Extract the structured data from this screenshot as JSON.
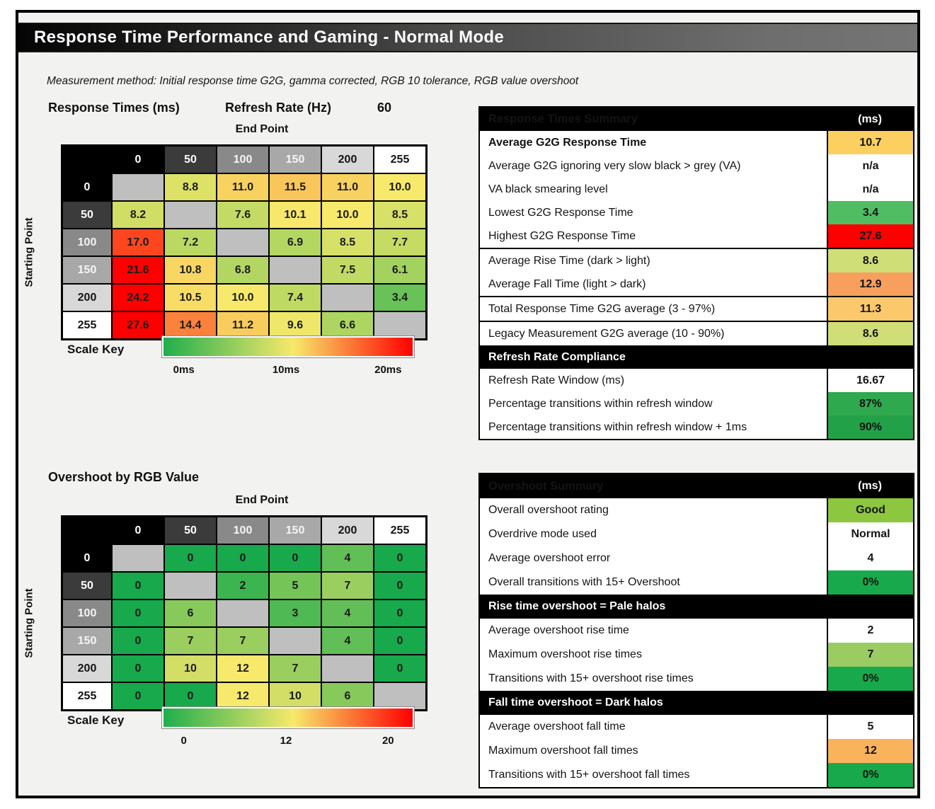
{
  "page": {
    "title": "Response Time Performance and Gaming - Normal Mode",
    "method_note": "Measurement method: Initial response time G2G, gamma corrected, RGB 10 tolerance, RGB value overshoot"
  },
  "ui": {
    "level_shades": [
      {
        "bg": "#000000",
        "fg": "#ffffff"
      },
      {
        "bg": "#3b3b3b",
        "fg": "#ffffff"
      },
      {
        "bg": "#898989",
        "fg": "#f5f5f5"
      },
      {
        "bg": "#a8a8a8",
        "fg": "#f5f5f5"
      },
      {
        "bg": "#d8d8d8",
        "fg": "#141414"
      },
      {
        "bg": "#ffffff",
        "fg": "#141414"
      }
    ],
    "diagonal_color": "#bfbfbf"
  },
  "chart_data": [
    {
      "type": "heatmap",
      "title": "Response Times (ms)",
      "refresh_rate": {
        "label": "Refresh Rate (Hz)",
        "value": "60"
      },
      "x_label": "End Point",
      "y_label": "Starting Point",
      "categories": [
        "0",
        "50",
        "100",
        "150",
        "200",
        "255"
      ],
      "rows": [
        [
          null,
          "8.8",
          "11.0",
          "11.5",
          "11.0",
          "10.0"
        ],
        [
          "8.2",
          null,
          "7.6",
          "10.1",
          "10.0",
          "8.5"
        ],
        [
          "17.0",
          "7.2",
          null,
          "6.9",
          "8.5",
          "7.7"
        ],
        [
          "21.6",
          "10.8",
          "6.8",
          null,
          "7.5",
          "6.1"
        ],
        [
          "24.2",
          "10.5",
          "10.0",
          "7.4",
          null,
          "3.4"
        ],
        [
          "27.6",
          "14.4",
          "11.2",
          "9.6",
          "6.6",
          null
        ]
      ],
      "scale": {
        "label": "Scale Key",
        "min": 0,
        "mid": 10,
        "max": 20,
        "colors": [
          "#1fae4d",
          "#f7e96b",
          "#ff0000"
        ],
        "ticks": [
          "0ms",
          "10ms",
          "20ms"
        ]
      }
    },
    {
      "type": "heatmap",
      "title": "Overshoot by RGB Value",
      "x_label": "End Point",
      "y_label": "Starting Point",
      "categories": [
        "0",
        "50",
        "100",
        "150",
        "200",
        "255"
      ],
      "rows": [
        [
          null,
          "0",
          "0",
          "0",
          "4",
          "0"
        ],
        [
          "0",
          null,
          "2",
          "5",
          "7",
          "0"
        ],
        [
          "0",
          "6",
          null,
          "3",
          "4",
          "0"
        ],
        [
          "0",
          "7",
          "7",
          null,
          "4",
          "0"
        ],
        [
          "0",
          "10",
          "12",
          "7",
          null,
          "0"
        ],
        [
          "0",
          "0",
          "12",
          "10",
          "6",
          null
        ]
      ],
      "scale": {
        "label": "Scale Key",
        "min": 0,
        "mid": 12,
        "max": 20,
        "colors": [
          "#17a94b",
          "#f7e96b",
          "#ff0000"
        ],
        "ticks": [
          "0",
          "12",
          "20"
        ]
      }
    },
    {
      "type": "table",
      "title": "Response Times Summary",
      "unit": "(ms)",
      "rows": [
        {
          "label": "Average G2G Response Time",
          "value": "10.7",
          "bg": "#fbcf60",
          "bold": true
        },
        {
          "label": "Average G2G ignoring very slow black > grey (VA)",
          "value": "n/a",
          "bg": "#ffffff"
        },
        {
          "label": "VA black smearing level",
          "value": "n/a",
          "bg": "#ffffff"
        },
        {
          "label": "Lowest G2G Response Time",
          "value": "3.4",
          "bg": "#50bd62"
        },
        {
          "label": "Highest G2G Response Time",
          "value": "27.6",
          "bg": "#ff0000"
        },
        {
          "label": "Average Rise Time (dark > light)",
          "value": "8.6",
          "bg": "#cfde77",
          "sep": true
        },
        {
          "label": "Average Fall Time (light > dark)",
          "value": "12.9",
          "bg": "#f99f5e"
        },
        {
          "label": "Total Response Time G2G average (3 - 97%)",
          "value": "11.3",
          "bg": "#fbc96b",
          "sep": true
        },
        {
          "label": "Legacy Measurement G2G average (10 - 90%)",
          "value": "8.6",
          "bg": "#cfde77",
          "sep": true
        },
        {
          "section": "Refresh Rate Compliance"
        },
        {
          "label": "Refresh Rate Window (ms)",
          "value": "16.67",
          "bg": "#ffffff"
        },
        {
          "label": "Percentage transitions within refresh window",
          "value": "87%",
          "bg": "#2fa94e"
        },
        {
          "label": "Percentage transitions within refresh window + 1ms",
          "value": "90%",
          "bg": "#23a148"
        }
      ]
    },
    {
      "type": "table",
      "title": "Overshoot Summary",
      "unit": "(ms)",
      "rows": [
        {
          "label": "Overall overshoot rating",
          "value": "Good",
          "bg": "#8dc63f"
        },
        {
          "label": "Overdrive mode used",
          "value": "Normal",
          "bg": "#ffffff"
        },
        {
          "label": "Average overshoot error",
          "value": "4",
          "bg": "#ffffff"
        },
        {
          "label": "Overall transitions with 15+ Overshoot",
          "value": "0%",
          "bg": "#17a94b"
        },
        {
          "section": "Rise time overshoot = Pale halos"
        },
        {
          "label": "Average overshoot rise time",
          "value": "2",
          "bg": "#ffffff"
        },
        {
          "label": "Maximum overshoot rise times",
          "value": "7",
          "bg": "#9bcb63"
        },
        {
          "label": "Transitions with 15+ overshoot rise times",
          "value": "0%",
          "bg": "#17a94b"
        },
        {
          "section": "Fall time overshoot = Dark halos"
        },
        {
          "label": "Average overshoot fall time",
          "value": "5",
          "bg": "#ffffff"
        },
        {
          "label": "Maximum overshoot fall times",
          "value": "12",
          "bg": "#f9b35c"
        },
        {
          "label": "Transitions with 15+ overshoot fall times",
          "value": "0%",
          "bg": "#17a94b"
        }
      ]
    }
  ]
}
